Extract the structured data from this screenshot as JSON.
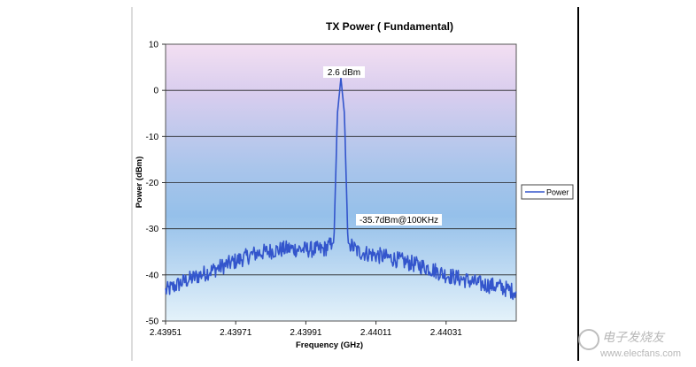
{
  "chart_data": {
    "type": "line",
    "title": "TX Power ( Fundamental)",
    "xlabel": "Frequency (GHz)",
    "ylabel": "Power (dBm)",
    "xlim": [
      2.43951,
      2.44051
    ],
    "ylim": [
      -50,
      10
    ],
    "x_ticks": [
      "2.43951",
      "2.43971",
      "2.43991",
      "2.44011",
      "2.44031"
    ],
    "y_ticks": [
      "10",
      "0",
      "-10",
      "-20",
      "-30",
      "-40",
      "-50"
    ],
    "grid": true,
    "legend_position": "right",
    "series": [
      {
        "name": "Power",
        "color": "#3355cc",
        "x": [
          2.43951,
          2.43956,
          2.43961,
          2.43966,
          2.43971,
          2.43976,
          2.43981,
          2.43986,
          2.43991,
          2.43996,
          2.43999,
          2.44,
          2.44001,
          2.44002,
          2.44003,
          2.44006,
          2.44011,
          2.44016,
          2.44021,
          2.44026,
          2.44031,
          2.44036,
          2.44041,
          2.44046,
          2.4405
        ],
        "y": [
          -43.5,
          -41.5,
          -40.0,
          -38.5,
          -37.0,
          -35.5,
          -34.8,
          -34.3,
          -34.5,
          -34.5,
          -33.0,
          -5.0,
          2.6,
          -5.0,
          -33.0,
          -35.0,
          -35.7,
          -36.5,
          -37.5,
          -38.5,
          -40.0,
          -41.0,
          -42.0,
          -42.5,
          -43.5
        ]
      }
    ],
    "annotations": [
      {
        "text": "2.6 dBm",
        "x": 2.44001,
        "y": 2.6
      },
      {
        "text": "-35.7dBm@100KHz",
        "x": 2.44011,
        "y": -35.7
      }
    ]
  },
  "watermark": {
    "cn_text": "电子发烧友",
    "url_text": "www.elecfans.com",
    "color": "#b0b0b0"
  },
  "colors": {
    "plot_top": "#f2dcf0",
    "plot_bottom": "#dceef8",
    "plot_mid": "#9fc6ea",
    "line": "#3355cc",
    "gridline": "#222222"
  }
}
